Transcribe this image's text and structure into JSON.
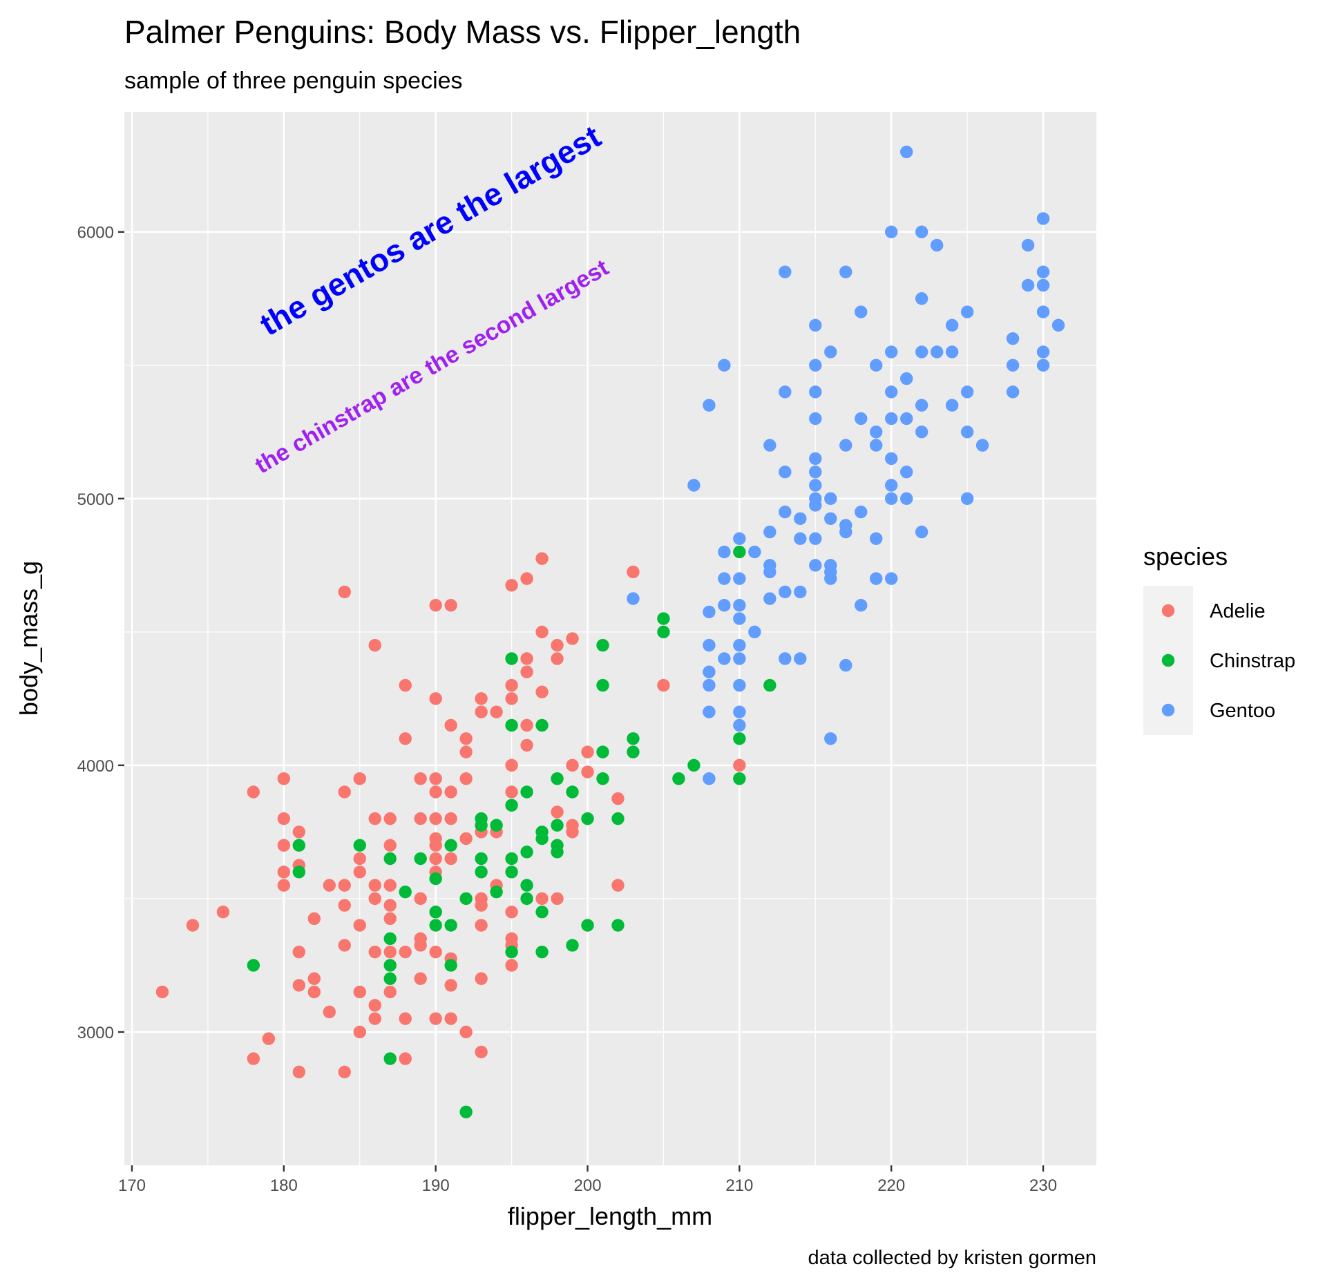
{
  "chart_data": {
    "type": "scatter",
    "title": "Palmer Penguins: Body Mass vs. Flipper_length",
    "subtitle": "sample of three penguin species",
    "caption": "data collected by kristen gormen",
    "xlabel": "flipper_length_mm",
    "ylabel": "body_mass_g",
    "xlim": [
      169.5,
      233.5
    ],
    "ylim": [
      2500,
      6450
    ],
    "x_ticks": [
      170,
      180,
      190,
      200,
      210,
      220,
      230
    ],
    "y_ticks": [
      3000,
      4000,
      5000,
      6000
    ],
    "grid": true,
    "legend": {
      "title": "species",
      "placement": "right"
    },
    "annotations": [
      {
        "text": "the gentos are the largest",
        "x": 190,
        "y": 5970,
        "angle": -30,
        "color": "#0000FF",
        "bold": true
      },
      {
        "text": "the chinstrap are the second largest",
        "x": 190,
        "y": 5470,
        "angle": -30,
        "color": "#A020F0",
        "bold": true
      }
    ],
    "series": [
      {
        "name": "Adelie",
        "color": "#F8766D",
        "points": [
          [
            172,
            3150
          ],
          [
            174,
            3400
          ],
          [
            176,
            3450
          ],
          [
            178,
            3900
          ],
          [
            178,
            2900
          ],
          [
            179,
            2975
          ],
          [
            180,
            3950
          ],
          [
            180,
            3800
          ],
          [
            180,
            3700
          ],
          [
            180,
            3600
          ],
          [
            180,
            3550
          ],
          [
            181,
            3750
          ],
          [
            181,
            3625
          ],
          [
            181,
            3300
          ],
          [
            181,
            3175
          ],
          [
            181,
            2850
          ],
          [
            182,
            3425
          ],
          [
            182,
            3200
          ],
          [
            182,
            3150
          ],
          [
            183,
            3550
          ],
          [
            183,
            3075
          ],
          [
            184,
            4650
          ],
          [
            184,
            3900
          ],
          [
            184,
            3550
          ],
          [
            184,
            3475
          ],
          [
            184,
            3325
          ],
          [
            184,
            2850
          ],
          [
            185,
            3950
          ],
          [
            185,
            3650
          ],
          [
            185,
            3600
          ],
          [
            185,
            3400
          ],
          [
            185,
            3150
          ],
          [
            185,
            3000
          ],
          [
            186,
            4450
          ],
          [
            186,
            3800
          ],
          [
            186,
            3550
          ],
          [
            186,
            3500
          ],
          [
            186,
            3300
          ],
          [
            186,
            3100
          ],
          [
            186,
            3050
          ],
          [
            187,
            3800
          ],
          [
            187,
            3700
          ],
          [
            187,
            3550
          ],
          [
            187,
            3475
          ],
          [
            187,
            3425
          ],
          [
            187,
            3300
          ],
          [
            187,
            3150
          ],
          [
            188,
            4300
          ],
          [
            188,
            4100
          ],
          [
            188,
            3300
          ],
          [
            188,
            3050
          ],
          [
            188,
            2900
          ],
          [
            189,
            3950
          ],
          [
            189,
            3800
          ],
          [
            189,
            3500
          ],
          [
            189,
            3350
          ],
          [
            189,
            3325
          ],
          [
            189,
            3200
          ],
          [
            190,
            4600
          ],
          [
            190,
            4250
          ],
          [
            190,
            3950
          ],
          [
            190,
            3900
          ],
          [
            190,
            3800
          ],
          [
            190,
            3725
          ],
          [
            190,
            3700
          ],
          [
            190,
            3650
          ],
          [
            190,
            3600
          ],
          [
            190,
            3450
          ],
          [
            190,
            3300
          ],
          [
            190,
            3050
          ],
          [
            191,
            4600
          ],
          [
            191,
            4150
          ],
          [
            191,
            3900
          ],
          [
            191,
            3800
          ],
          [
            191,
            3650
          ],
          [
            191,
            3275
          ],
          [
            191,
            3175
          ],
          [
            191,
            3050
          ],
          [
            192,
            4100
          ],
          [
            192,
            4050
          ],
          [
            192,
            3950
          ],
          [
            192,
            3725
          ],
          [
            192,
            3000
          ],
          [
            193,
            4250
          ],
          [
            193,
            4200
          ],
          [
            193,
            3750
          ],
          [
            193,
            3500
          ],
          [
            193,
            3475
          ],
          [
            193,
            3400
          ],
          [
            193,
            3200
          ],
          [
            193,
            2925
          ],
          [
            194,
            4200
          ],
          [
            194,
            3750
          ],
          [
            194,
            3550
          ],
          [
            195,
            4675
          ],
          [
            195,
            4300
          ],
          [
            195,
            4250
          ],
          [
            195,
            4000
          ],
          [
            195,
            3900
          ],
          [
            195,
            3450
          ],
          [
            195,
            3350
          ],
          [
            195,
            3325
          ],
          [
            195,
            3250
          ],
          [
            196,
            4700
          ],
          [
            196,
            4400
          ],
          [
            196,
            4350
          ],
          [
            196,
            4150
          ],
          [
            196,
            4075
          ],
          [
            197,
            4775
          ],
          [
            197,
            4500
          ],
          [
            197,
            4275
          ],
          [
            197,
            3500
          ],
          [
            198,
            4450
          ],
          [
            198,
            4400
          ],
          [
            198,
            3825
          ],
          [
            198,
            3500
          ],
          [
            199,
            4475
          ],
          [
            199,
            4000
          ],
          [
            199,
            3775
          ],
          [
            199,
            3750
          ],
          [
            200,
            4050
          ],
          [
            200,
            3975
          ],
          [
            202,
            3875
          ],
          [
            202,
            3550
          ],
          [
            203,
            4725
          ],
          [
            205,
            4300
          ],
          [
            210,
            4000
          ]
        ]
      },
      {
        "name": "Chinstrap",
        "color": "#00BA38",
        "points": [
          [
            178,
            3250
          ],
          [
            181,
            3700
          ],
          [
            181,
            3600
          ],
          [
            185,
            3700
          ],
          [
            187,
            3650
          ],
          [
            187,
            3350
          ],
          [
            187,
            3250
          ],
          [
            187,
            3200
          ],
          [
            187,
            2900
          ],
          [
            188,
            3525
          ],
          [
            189,
            3650
          ],
          [
            190,
            3575
          ],
          [
            190,
            3450
          ],
          [
            190,
            3400
          ],
          [
            191,
            3700
          ],
          [
            191,
            3400
          ],
          [
            191,
            3250
          ],
          [
            192,
            3500
          ],
          [
            192,
            2700
          ],
          [
            193,
            3800
          ],
          [
            193,
            3775
          ],
          [
            193,
            3650
          ],
          [
            193,
            3600
          ],
          [
            194,
            3775
          ],
          [
            194,
            3525
          ],
          [
            195,
            4400
          ],
          [
            195,
            4150
          ],
          [
            195,
            3850
          ],
          [
            195,
            3650
          ],
          [
            195,
            3600
          ],
          [
            195,
            3300
          ],
          [
            196,
            3900
          ],
          [
            196,
            3675
          ],
          [
            196,
            3550
          ],
          [
            196,
            3500
          ],
          [
            197,
            4150
          ],
          [
            197,
            3750
          ],
          [
            197,
            3725
          ],
          [
            197,
            3450
          ],
          [
            197,
            3300
          ],
          [
            198,
            3950
          ],
          [
            198,
            3775
          ],
          [
            198,
            3700
          ],
          [
            198,
            3675
          ],
          [
            199,
            3900
          ],
          [
            199,
            3325
          ],
          [
            200,
            3800
          ],
          [
            200,
            3400
          ],
          [
            201,
            4450
          ],
          [
            201,
            4300
          ],
          [
            201,
            4050
          ],
          [
            201,
            3950
          ],
          [
            202,
            3800
          ],
          [
            202,
            3400
          ],
          [
            203,
            4100
          ],
          [
            203,
            4050
          ],
          [
            205,
            4550
          ],
          [
            205,
            4500
          ],
          [
            206,
            3950
          ],
          [
            207,
            4000
          ],
          [
            210,
            4800
          ],
          [
            210,
            4100
          ],
          [
            210,
            3950
          ],
          [
            212,
            4300
          ]
        ]
      },
      {
        "name": "Gentoo",
        "color": "#619CFF",
        "points": [
          [
            203,
            4625
          ],
          [
            207,
            5050
          ],
          [
            208,
            5350
          ],
          [
            208,
            4575
          ],
          [
            208,
            4450
          ],
          [
            208,
            4350
          ],
          [
            208,
            4300
          ],
          [
            208,
            4200
          ],
          [
            208,
            3950
          ],
          [
            209,
            5500
          ],
          [
            209,
            4800
          ],
          [
            209,
            4700
          ],
          [
            209,
            4600
          ],
          [
            209,
            4400
          ],
          [
            210,
            4850
          ],
          [
            210,
            4700
          ],
          [
            210,
            4600
          ],
          [
            210,
            4550
          ],
          [
            210,
            4450
          ],
          [
            210,
            4400
          ],
          [
            210,
            4300
          ],
          [
            210,
            4200
          ],
          [
            210,
            4150
          ],
          [
            211,
            4800
          ],
          [
            211,
            4500
          ],
          [
            212,
            5200
          ],
          [
            212,
            4875
          ],
          [
            212,
            4750
          ],
          [
            212,
            4725
          ],
          [
            212,
            4625
          ],
          [
            213,
            5850
          ],
          [
            213,
            5400
          ],
          [
            213,
            5100
          ],
          [
            213,
            4950
          ],
          [
            213,
            4650
          ],
          [
            213,
            4400
          ],
          [
            214,
            4925
          ],
          [
            214,
            4850
          ],
          [
            214,
            4650
          ],
          [
            214,
            4400
          ],
          [
            215,
            5650
          ],
          [
            215,
            5500
          ],
          [
            215,
            5400
          ],
          [
            215,
            5300
          ],
          [
            215,
            5150
          ],
          [
            215,
            5100
          ],
          [
            215,
            5050
          ],
          [
            215,
            5000
          ],
          [
            215,
            4975
          ],
          [
            215,
            4850
          ],
          [
            215,
            4750
          ],
          [
            216,
            5550
          ],
          [
            216,
            5000
          ],
          [
            216,
            4925
          ],
          [
            216,
            4750
          ],
          [
            216,
            4725
          ],
          [
            216,
            4700
          ],
          [
            216,
            4100
          ],
          [
            217,
            5850
          ],
          [
            217,
            5200
          ],
          [
            217,
            4900
          ],
          [
            217,
            4875
          ],
          [
            217,
            4375
          ],
          [
            218,
            5700
          ],
          [
            218,
            5300
          ],
          [
            218,
            4950
          ],
          [
            218,
            4600
          ],
          [
            219,
            5500
          ],
          [
            219,
            5250
          ],
          [
            219,
            5200
          ],
          [
            219,
            4850
          ],
          [
            219,
            4700
          ],
          [
            220,
            6000
          ],
          [
            220,
            5550
          ],
          [
            220,
            5400
          ],
          [
            220,
            5300
          ],
          [
            220,
            5150
          ],
          [
            220,
            5050
          ],
          [
            220,
            5000
          ],
          [
            220,
            4700
          ],
          [
            221,
            6300
          ],
          [
            221,
            5450
          ],
          [
            221,
            5300
          ],
          [
            221,
            5100
          ],
          [
            221,
            5000
          ],
          [
            222,
            6000
          ],
          [
            222,
            5750
          ],
          [
            222,
            5550
          ],
          [
            222,
            5350
          ],
          [
            222,
            5250
          ],
          [
            222,
            4875
          ],
          [
            223,
            5950
          ],
          [
            223,
            5550
          ],
          [
            224,
            5650
          ],
          [
            224,
            5550
          ],
          [
            224,
            5350
          ],
          [
            225,
            5700
          ],
          [
            225,
            5400
          ],
          [
            225,
            5250
          ],
          [
            225,
            5000
          ],
          [
            226,
            5200
          ],
          [
            228,
            5600
          ],
          [
            228,
            5500
          ],
          [
            228,
            5400
          ],
          [
            229,
            5950
          ],
          [
            229,
            5800
          ],
          [
            230,
            6050
          ],
          [
            230,
            5850
          ],
          [
            230,
            5800
          ],
          [
            230,
            5700
          ],
          [
            230,
            5550
          ],
          [
            230,
            5500
          ],
          [
            231,
            5650
          ]
        ]
      }
    ]
  }
}
